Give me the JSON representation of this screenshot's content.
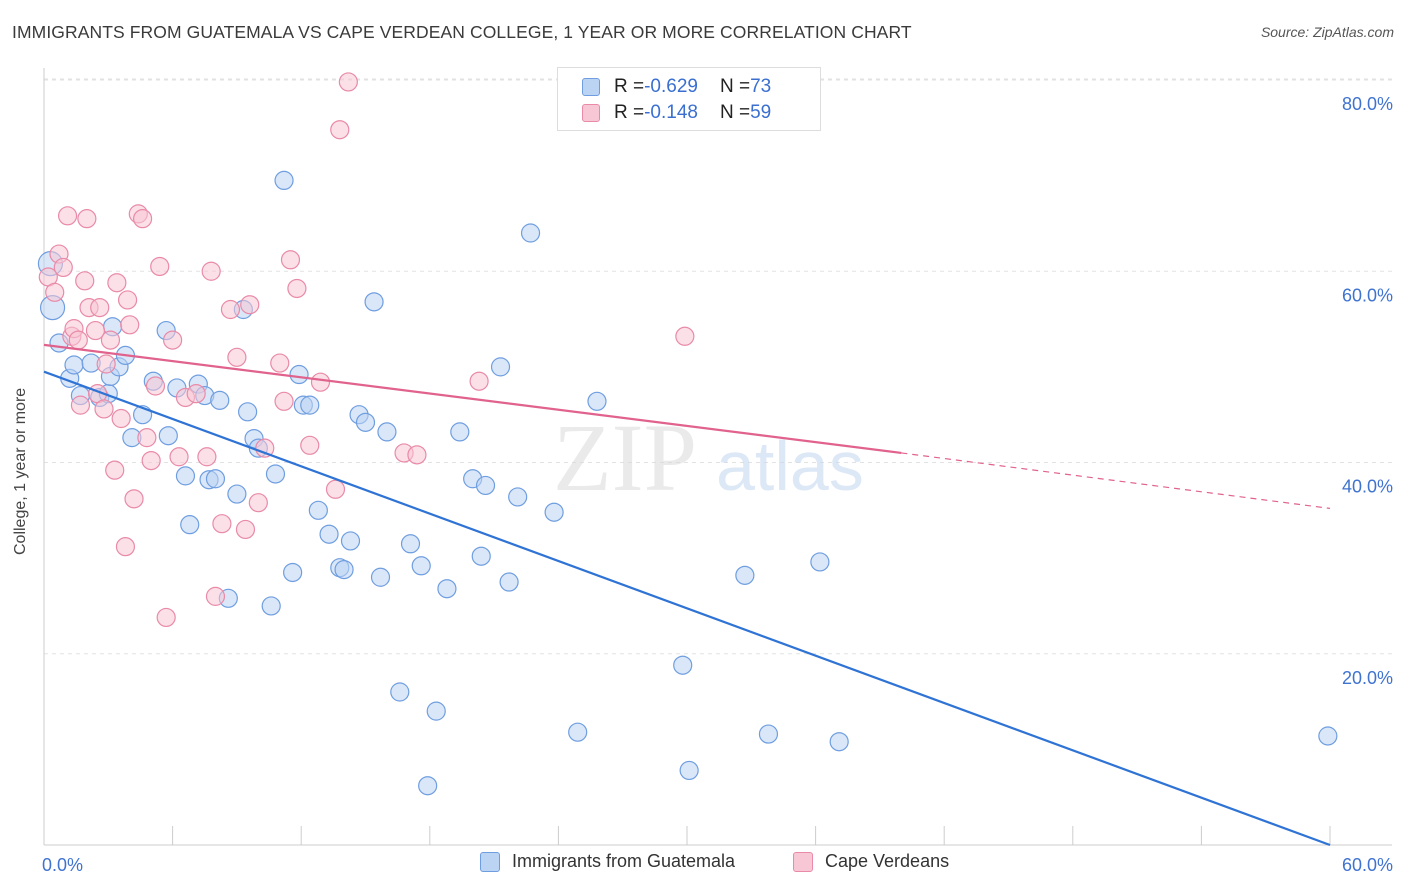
{
  "chart_data": {
    "type": "scatter",
    "title": "IMMIGRANTS FROM GUATEMALA VS CAPE VERDEAN COLLEGE, 1 YEAR OR MORE CORRELATION CHART",
    "source": "Source: ZipAtlas.com",
    "ylabel": "College, 1 year or more",
    "xlabel": "",
    "xlim": [
      0,
      60
    ],
    "ylim": [
      0,
      80
    ],
    "x_tick_labels": [
      "0.0%",
      "60.0%"
    ],
    "y_tick_labels": [
      "20.0%",
      "40.0%",
      "60.0%",
      "80.0%"
    ],
    "y_tick_values": [
      20,
      40,
      60,
      80
    ],
    "watermark": {
      "zip": "ZIP",
      "atlas": "atlas"
    },
    "legend_stats": [
      {
        "r_label": "R = ",
        "r_value": "-0.629",
        "n_label": "N = ",
        "n_value": "73"
      },
      {
        "r_label": "R = ",
        "r_value": "-0.148",
        "n_label": "N = ",
        "n_value": "59"
      }
    ],
    "series": [
      {
        "name": "Immigrants from Guatemala",
        "color": "#6f9ee0",
        "fill": "#bcd4f4",
        "line_color": "#2f73d4",
        "trend": {
          "x": [
            0,
            60
          ],
          "y": [
            49.5,
            0
          ]
        },
        "points": [
          [
            0.3,
            60.8
          ],
          [
            0.4,
            56.2
          ],
          [
            0.7,
            52.5
          ],
          [
            1.2,
            48.8
          ],
          [
            1.4,
            50.2
          ],
          [
            1.7,
            47.0
          ],
          [
            2.2,
            50.4
          ],
          [
            2.6,
            46.8
          ],
          [
            3.0,
            47.2
          ],
          [
            3.1,
            49.0
          ],
          [
            3.2,
            54.2
          ],
          [
            3.5,
            50.0
          ],
          [
            3.8,
            51.2
          ],
          [
            4.1,
            42.6
          ],
          [
            4.6,
            45.0
          ],
          [
            5.1,
            48.5
          ],
          [
            5.7,
            53.8
          ],
          [
            5.8,
            42.8
          ],
          [
            6.2,
            47.8
          ],
          [
            6.6,
            38.6
          ],
          [
            6.8,
            33.5
          ],
          [
            7.2,
            48.2
          ],
          [
            7.5,
            47.0
          ],
          [
            7.7,
            38.2
          ],
          [
            8.0,
            38.3
          ],
          [
            8.2,
            46.5
          ],
          [
            8.6,
            25.8
          ],
          [
            9.0,
            36.7
          ],
          [
            9.3,
            56.0
          ],
          [
            9.5,
            45.3
          ],
          [
            9.8,
            42.5
          ],
          [
            10.0,
            41.5
          ],
          [
            10.6,
            25.0
          ],
          [
            10.8,
            38.8
          ],
          [
            11.2,
            69.5
          ],
          [
            11.6,
            28.5
          ],
          [
            11.9,
            49.2
          ],
          [
            12.1,
            46.0
          ],
          [
            12.4,
            46.0
          ],
          [
            12.8,
            35.0
          ],
          [
            13.3,
            32.5
          ],
          [
            13.8,
            29.0
          ],
          [
            14.0,
            28.8
          ],
          [
            14.3,
            31.8
          ],
          [
            14.7,
            45.0
          ],
          [
            15.0,
            44.2
          ],
          [
            15.4,
            56.8
          ],
          [
            15.7,
            28.0
          ],
          [
            16.0,
            43.2
          ],
          [
            16.6,
            16.0
          ],
          [
            17.1,
            31.5
          ],
          [
            17.6,
            29.2
          ],
          [
            17.9,
            6.2
          ],
          [
            18.3,
            14.0
          ],
          [
            18.8,
            26.8
          ],
          [
            19.4,
            43.2
          ],
          [
            20.0,
            38.3
          ],
          [
            20.4,
            30.2
          ],
          [
            20.6,
            37.6
          ],
          [
            21.3,
            50.0
          ],
          [
            21.7,
            27.5
          ],
          [
            22.1,
            36.4
          ],
          [
            22.7,
            64.0
          ],
          [
            23.8,
            34.8
          ],
          [
            24.9,
            11.8
          ],
          [
            25.8,
            46.4
          ],
          [
            29.8,
            18.8
          ],
          [
            30.1,
            7.8
          ],
          [
            32.7,
            28.2
          ],
          [
            33.8,
            11.6
          ],
          [
            36.2,
            29.6
          ],
          [
            37.1,
            10.8
          ],
          [
            59.9,
            11.4
          ]
        ]
      },
      {
        "name": "Cape Verdeans",
        "color": "#e98aa8",
        "fill": "#f8c7d6",
        "line_color": "#e0628d",
        "trend": {
          "x": [
            0,
            40
          ],
          "y": [
            52.3,
            41.0
          ]
        },
        "trend_dashed": {
          "x": [
            40,
            60
          ],
          "y": [
            41.0,
            35.2
          ]
        },
        "points": [
          [
            0.2,
            59.4
          ],
          [
            0.5,
            57.8
          ],
          [
            0.7,
            61.8
          ],
          [
            0.9,
            60.4
          ],
          [
            1.1,
            65.8
          ],
          [
            1.3,
            53.2
          ],
          [
            1.4,
            54.0
          ],
          [
            1.6,
            52.8
          ],
          [
            1.7,
            46.0
          ],
          [
            1.9,
            59.0
          ],
          [
            2.0,
            65.5
          ],
          [
            2.1,
            56.2
          ],
          [
            2.4,
            53.8
          ],
          [
            2.5,
            47.2
          ],
          [
            2.6,
            56.2
          ],
          [
            2.8,
            45.6
          ],
          [
            2.9,
            50.3
          ],
          [
            3.1,
            52.8
          ],
          [
            3.3,
            39.2
          ],
          [
            3.4,
            58.8
          ],
          [
            3.6,
            44.6
          ],
          [
            3.8,
            31.2
          ],
          [
            3.9,
            57.0
          ],
          [
            4.0,
            54.4
          ],
          [
            4.2,
            36.2
          ],
          [
            4.4,
            66.0
          ],
          [
            4.6,
            65.5
          ],
          [
            4.8,
            42.6
          ],
          [
            5.0,
            40.2
          ],
          [
            5.2,
            48.0
          ],
          [
            5.4,
            60.5
          ],
          [
            5.7,
            23.8
          ],
          [
            6.0,
            52.8
          ],
          [
            6.3,
            40.6
          ],
          [
            6.6,
            46.8
          ],
          [
            7.1,
            47.2
          ],
          [
            7.6,
            40.6
          ],
          [
            7.8,
            60.0
          ],
          [
            8.0,
            26.0
          ],
          [
            8.3,
            33.6
          ],
          [
            8.7,
            56.0
          ],
          [
            9.0,
            51.0
          ],
          [
            9.4,
            33.0
          ],
          [
            9.6,
            56.5
          ],
          [
            10.0,
            35.8
          ],
          [
            10.3,
            41.5
          ],
          [
            11.0,
            50.4
          ],
          [
            11.2,
            46.4
          ],
          [
            11.5,
            61.2
          ],
          [
            11.8,
            58.2
          ],
          [
            12.4,
            41.8
          ],
          [
            12.9,
            48.4
          ],
          [
            13.6,
            37.2
          ],
          [
            13.8,
            74.8
          ],
          [
            14.2,
            79.8
          ],
          [
            16.8,
            41.0
          ],
          [
            17.4,
            40.8
          ],
          [
            20.3,
            48.5
          ],
          [
            29.9,
            53.2
          ]
        ]
      }
    ]
  }
}
